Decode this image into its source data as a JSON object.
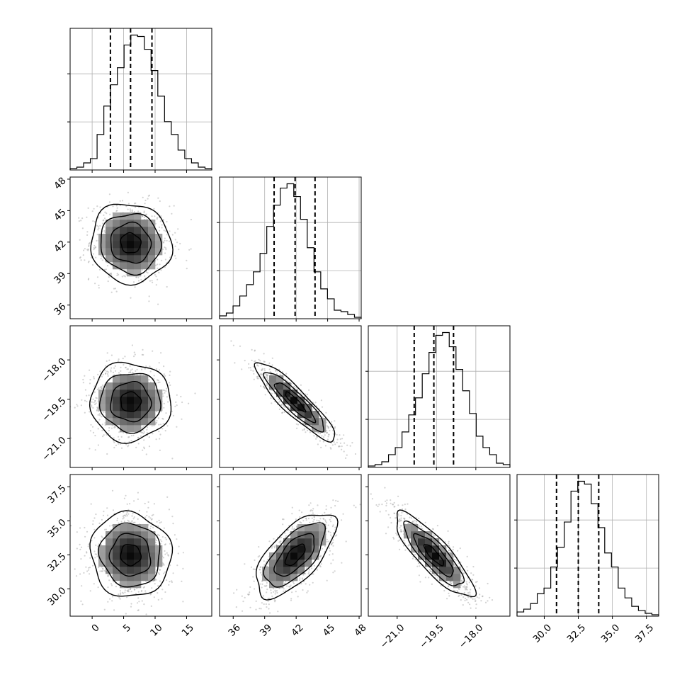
{
  "chart_data": {
    "type": "corner",
    "parameters": [
      {
        "range": [
          -3.5,
          19
        ],
        "ticks": [
          0,
          5,
          10,
          15
        ],
        "tick_labels": [
          "0",
          "5",
          "10",
          "15"
        ],
        "quantiles": [
          2.9,
          6.1,
          9.5
        ],
        "hist": [
          1,
          2,
          5,
          8,
          25,
          45,
          60,
          72,
          88,
          95,
          94,
          85,
          70,
          52,
          34,
          25,
          14,
          8,
          5,
          2,
          1
        ]
      },
      {
        "range": [
          34.7,
          48.2
        ],
        "ticks": [
          36,
          39,
          42,
          45,
          48
        ],
        "tick_labels": [
          "36",
          "39",
          "42",
          "45",
          "48"
        ],
        "quantiles": [
          39.9,
          41.9,
          43.8
        ],
        "hist": [
          2,
          4,
          9,
          16,
          24,
          33,
          46,
          65,
          80,
          92,
          95,
          86,
          70,
          50,
          33,
          21,
          14,
          6,
          5,
          3,
          1
        ]
      },
      {
        "range": [
          -22.1,
          -16.7
        ],
        "ticks": [
          -21.0,
          -19.5,
          -18.0
        ],
        "tick_labels": [
          "−21.0",
          "−19.5",
          "−18.0"
        ],
        "quantiles": [
          -20.35,
          -19.6,
          -18.85
        ],
        "hist": [
          1,
          2,
          4,
          9,
          14,
          25,
          37,
          49,
          66,
          81,
          93,
          95,
          85,
          69,
          54,
          38,
          22,
          14,
          9,
          3,
          2
        ]
      },
      {
        "range": [
          28.0,
          38.4
        ],
        "ticks": [
          30.0,
          32.5,
          35.0,
          37.5
        ],
        "tick_labels": [
          "30.0",
          "32.5",
          "35.0",
          "37.5"
        ],
        "quantiles": [
          30.9,
          32.5,
          34.0
        ],
        "hist": [
          3,
          5,
          9,
          16,
          20,
          35,
          49,
          67,
          89,
          96,
          94,
          80,
          63,
          45,
          35,
          20,
          13,
          7,
          4,
          2,
          1
        ]
      }
    ],
    "pairs": [
      {
        "x": 0,
        "y": 1,
        "mean": [
          6.1,
          41.9
        ],
        "sd": [
          3.2,
          1.9
        ],
        "rho": -0.05
      },
      {
        "x": 0,
        "y": 2,
        "mean": [
          6.1,
          -19.6
        ],
        "sd": [
          3.2,
          0.75
        ],
        "rho": 0.0
      },
      {
        "x": 1,
        "y": 2,
        "mean": [
          41.9,
          -19.6
        ],
        "sd": [
          1.9,
          0.75
        ],
        "rho": -0.9
      },
      {
        "x": 0,
        "y": 3,
        "mean": [
          6.1,
          32.5
        ],
        "sd": [
          3.2,
          1.55
        ],
        "rho": -0.05
      },
      {
        "x": 1,
        "y": 3,
        "mean": [
          41.9,
          32.5
        ],
        "sd": [
          1.9,
          1.55
        ],
        "rho": 0.65
      },
      {
        "x": 2,
        "y": 3,
        "mean": [
          -19.6,
          32.5
        ],
        "sd": [
          0.75,
          1.55
        ],
        "rho": -0.85
      }
    ],
    "contour_levels_sigma": [
      0.5,
      1.0,
      1.5,
      2.0
    ],
    "grid": true,
    "colors": {
      "line": "#000000",
      "points": "#9e9e9e",
      "grid": "#b0b0b0"
    }
  }
}
